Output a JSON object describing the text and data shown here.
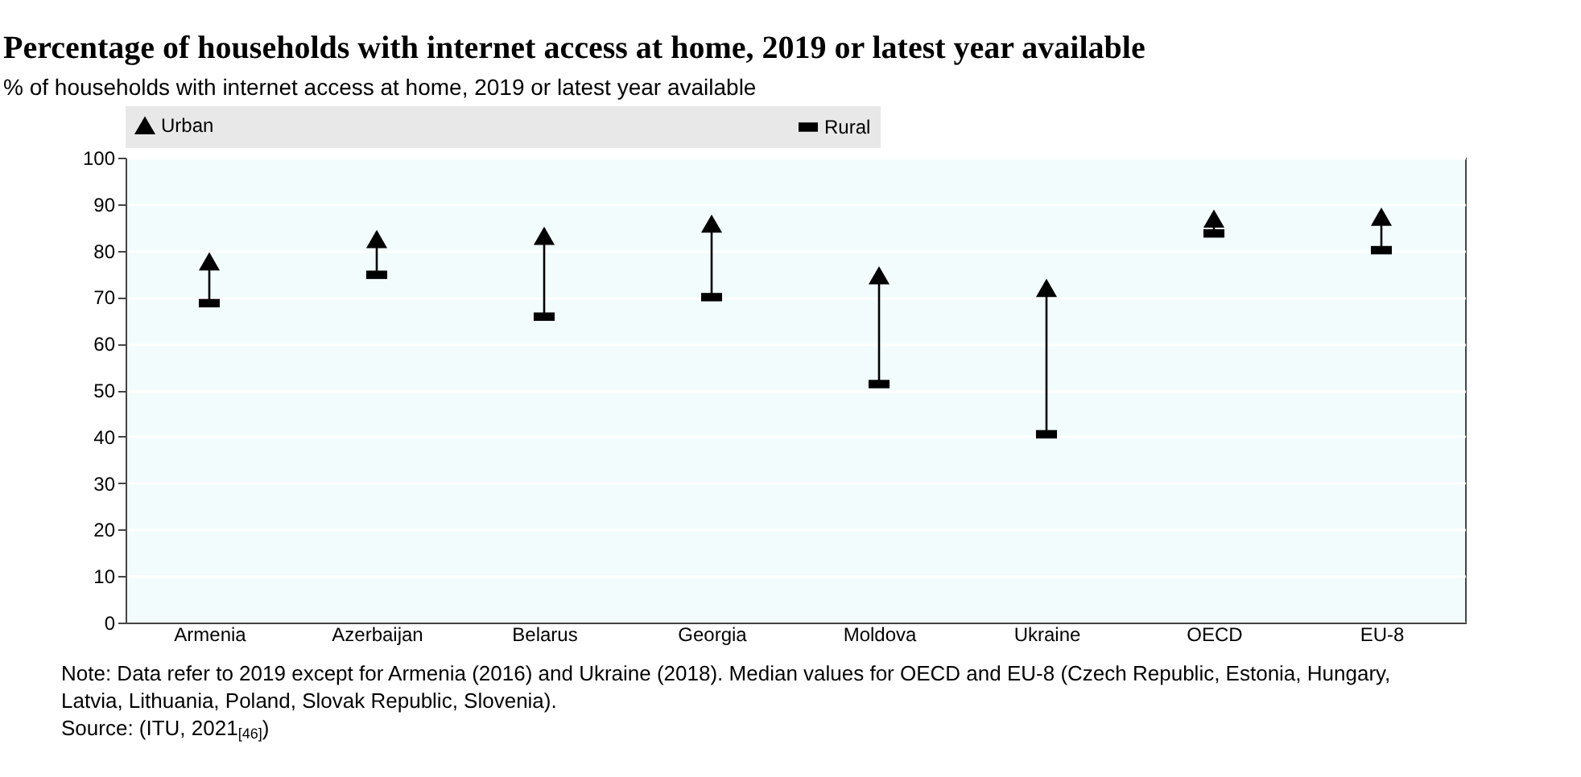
{
  "chart_data": {
    "type": "scatter",
    "title": "Percentage of households with internet access at home, 2019 or latest year available",
    "subtitle": "% of households with internet access at home, 2019 or latest year available",
    "categories": [
      "Armenia",
      "Azerbaijan",
      "Belarus",
      "Georgia",
      "Moldova",
      "Ukraine",
      "OECD",
      "EU-8"
    ],
    "series": [
      {
        "name": "Urban",
        "color": "#000000",
        "marker": "triangle",
        "values": [
          77.7,
          82.5,
          83.2,
          85.8,
          74.7,
          72.0,
          86.9,
          87.3
        ]
      },
      {
        "name": "Rural",
        "color": "#000000",
        "marker": "square",
        "values": [
          68.7,
          74.8,
          65.8,
          70.0,
          51.3,
          40.5,
          83.7,
          80.1
        ]
      }
    ],
    "ylim": [
      0,
      100
    ],
    "yticks": [
      0,
      10,
      20,
      30,
      40,
      50,
      60,
      70,
      80,
      90,
      100
    ],
    "grid": true,
    "legend": "top",
    "annotations": [
      "Note: Data refer to 2019 except for Armenia (2016) and Ukraine (2018). Median values for OECD and EU-8 (Czech Republic, Estonia, Hungary, Latvia, Lithuania, Poland, Slovak Republic, Slovenia).",
      "Source: (ITU, 2021$_{[46]}$)"
    ]
  }
}
